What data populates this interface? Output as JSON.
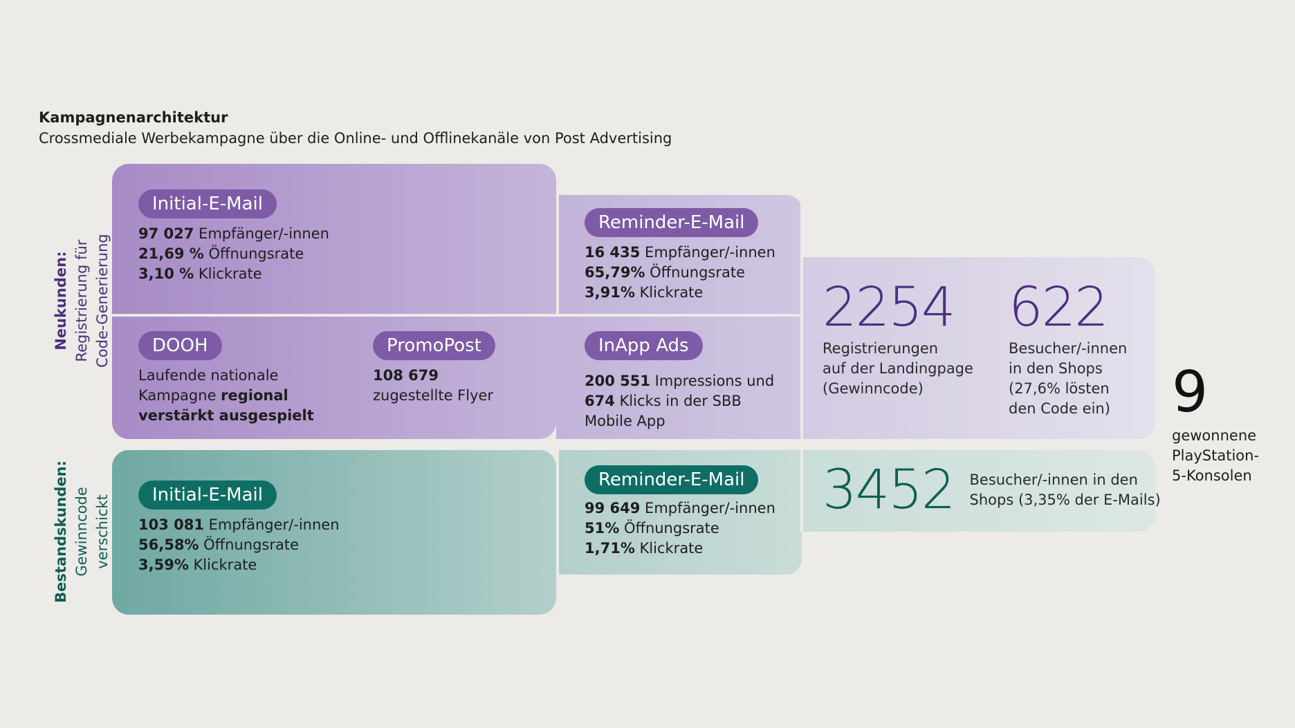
{
  "header": {
    "title": "Kampagnenarchitektur",
    "subtitle": "Crossmediale Werbekampagne über die Online- und Offlinekanäle von Post Advertising"
  },
  "colors": {
    "purple_dark": "#7D5BA6",
    "purple_light": "#D9D2E6",
    "teal_dark": "#0F6E64",
    "teal_light": "#D6E5E2",
    "purple_text": "#4C2E7E",
    "teal_text": "#0E5E56"
  },
  "neukunden": {
    "label_bold": "Neukunden:",
    "label_line1": "Registrierung für",
    "label_line2": "Code-Generierung",
    "initial": {
      "pill": "Initial-E-Mail",
      "v1": "97 027",
      "t1": " Empfänger/-innen",
      "v2": "21,69 %",
      "t2": " Öffnungsrate",
      "v3": "3,10 %",
      "t3": " Klickrate"
    },
    "reminder": {
      "pill": "Reminder-E-Mail",
      "v1": "16 435",
      "t1": " Empfänger/-innen",
      "v2": "65,79%",
      "t2": " Öffnungsrate",
      "v3": "3,91%",
      "t3": " Klickrate"
    },
    "dooh": {
      "pill": "DOOH",
      "line1": "Laufende nationale",
      "line2a": "Kampagne ",
      "line2b": "regional",
      "line3": "verstärkt ausgespielt"
    },
    "promopost": {
      "pill": "PromoPost",
      "v1": "108 679",
      "t1": "zugestellte Flyer"
    },
    "inapp": {
      "pill": "InApp Ads",
      "v1": "200 551",
      "t1": " Impressions und",
      "v2": "674",
      "t2": " Klicks in der SBB",
      "t3": "Mobile App"
    },
    "result1": {
      "number": "2254",
      "line1": "Registrierungen",
      "line2": "auf der Landingpage",
      "line3": "(Gewinncode)"
    },
    "result2": {
      "number": "622",
      "line1": "Besucher/-innen",
      "line2": "in den Shops",
      "line3": "(27,6% lösten",
      "line4": "den Code ein)"
    }
  },
  "bestandskunden": {
    "label_bold": "Bestandskunden:",
    "label_line1": "Gewinncode",
    "label_line2": "verschickt",
    "initial": {
      "pill": "Initial-E-Mail",
      "v1": "103 081",
      "t1": " Empfänger/-innen",
      "v2": "56,58%",
      "t2": " Öffnungsrate",
      "v3": "3,59%",
      "t3": " Klickrate"
    },
    "reminder": {
      "pill": "Reminder-E-Mail",
      "v1": "99 649",
      "t1": " Empfänger/-innen",
      "v2": "51%",
      "t2": " Öffnungsrate",
      "v3": "1,71%",
      "t3": " Klickrate"
    },
    "result": {
      "number": "3452",
      "line1": "Besucher/-innen in den",
      "line2": "Shops (3,35% der E-Mails)"
    }
  },
  "final": {
    "number": "9",
    "line1": "gewonnene",
    "line2": "PlayStation-",
    "line3": "5-Konsolen"
  }
}
